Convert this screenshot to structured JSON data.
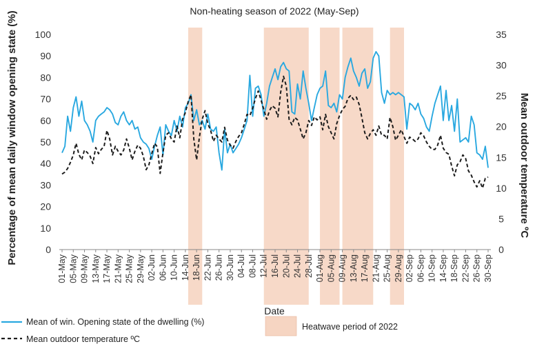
{
  "chart_data": {
    "type": "line",
    "title": "Non-heating season of 2022 (May-Sep)",
    "xlabel": "Date",
    "ylabel_left": "Percentage of mean daily window opening state (%)",
    "ylabel_right": "Mean outdoor temperature ºC",
    "ylim_left": [
      0,
      100
    ],
    "ylim_right": [
      0,
      35
    ],
    "yticks_left": [
      "0",
      "10",
      "20",
      "30",
      "40",
      "50",
      "60",
      "70",
      "80",
      "90",
      "100"
    ],
    "yticks_right": [
      "0",
      "5",
      "10",
      "15",
      "20",
      "25",
      "30",
      "35"
    ],
    "x_ticks": [
      "01-May",
      "05-May",
      "09-May",
      "13-May",
      "17-May",
      "21-May",
      "25-May",
      "29-May",
      "02-Jun",
      "06-Jun",
      "10-Jun",
      "14-Jun",
      "18-Jun",
      "22-Jun",
      "26-Jun",
      "30-Jun",
      "04-Jul",
      "08-Jul",
      "12-Jul",
      "16-Jul",
      "20-Jul",
      "24-Jul",
      "28-Jul",
      "01-Aug",
      "05-Aug",
      "09-Aug",
      "13-Aug",
      "17-Aug",
      "21-Aug",
      "25-Aug",
      "29-Aug",
      "02-Sep",
      "06-Sep",
      "10-Sep",
      "14-Sep",
      "18-Sep",
      "22-Sep",
      "26-Sep",
      "30-Sep"
    ],
    "x_range_days": [
      0,
      152
    ],
    "heatwave_periods_days": [
      [
        45,
        50
      ],
      [
        72,
        88
      ],
      [
        92,
        99
      ],
      [
        100,
        111
      ],
      [
        117,
        122
      ]
    ],
    "series": [
      {
        "name": "Mean of win. Opening state of the dwelling (%)",
        "axis": "left",
        "color": "#29a8e0",
        "style": "solid",
        "points": [
          [
            0,
            45
          ],
          [
            1,
            48
          ],
          [
            2,
            62
          ],
          [
            3,
            55
          ],
          [
            4,
            66
          ],
          [
            5,
            71
          ],
          [
            6,
            62
          ],
          [
            7,
            69
          ],
          [
            8,
            60
          ],
          [
            9,
            58
          ],
          [
            10,
            55
          ],
          [
            11,
            50
          ],
          [
            12,
            60
          ],
          [
            13,
            62
          ],
          [
            14,
            63
          ],
          [
            15,
            64
          ],
          [
            16,
            66
          ],
          [
            17,
            65
          ],
          [
            18,
            63
          ],
          [
            19,
            59
          ],
          [
            20,
            58
          ],
          [
            21,
            62
          ],
          [
            22,
            64
          ],
          [
            23,
            60
          ],
          [
            24,
            58
          ],
          [
            25,
            60
          ],
          [
            26,
            56
          ],
          [
            27,
            57
          ],
          [
            28,
            52
          ],
          [
            29,
            50
          ],
          [
            30,
            49
          ],
          [
            31,
            47
          ],
          [
            32,
            42
          ],
          [
            33,
            48
          ],
          [
            34,
            53
          ],
          [
            35,
            57
          ],
          [
            36,
            44
          ],
          [
            37,
            58
          ],
          [
            38,
            55
          ],
          [
            39,
            53
          ],
          [
            40,
            60
          ],
          [
            41,
            55
          ],
          [
            42,
            62
          ],
          [
            43,
            57
          ],
          [
            44,
            66
          ],
          [
            45,
            68
          ],
          [
            46,
            72
          ],
          [
            47,
            60
          ],
          [
            48,
            65
          ],
          [
            49,
            58
          ],
          [
            50,
            60
          ],
          [
            51,
            56
          ],
          [
            52,
            63
          ],
          [
            53,
            56
          ],
          [
            54,
            55
          ],
          [
            55,
            57
          ],
          [
            56,
            45
          ],
          [
            57,
            37
          ],
          [
            58,
            56
          ],
          [
            59,
            45
          ],
          [
            60,
            49
          ],
          [
            61,
            45
          ],
          [
            62,
            47
          ],
          [
            63,
            49
          ],
          [
            64,
            52
          ],
          [
            65,
            56
          ],
          [
            66,
            60
          ],
          [
            67,
            81
          ],
          [
            68,
            62
          ],
          [
            69,
            75
          ],
          [
            70,
            76
          ],
          [
            71,
            72
          ],
          [
            72,
            62
          ],
          [
            73,
            68
          ],
          [
            74,
            76
          ],
          [
            75,
            80
          ],
          [
            76,
            84
          ],
          [
            77,
            79
          ],
          [
            78,
            85
          ],
          [
            79,
            87
          ],
          [
            80,
            84
          ],
          [
            81,
            83
          ],
          [
            82,
            64
          ],
          [
            83,
            63
          ],
          [
            84,
            77
          ],
          [
            85,
            70
          ],
          [
            86,
            83
          ],
          [
            87,
            75
          ],
          [
            88,
            68
          ],
          [
            89,
            60
          ],
          [
            90,
            66
          ],
          [
            91,
            72
          ],
          [
            92,
            75
          ],
          [
            93,
            76
          ],
          [
            94,
            83
          ],
          [
            95,
            67
          ],
          [
            96,
            66
          ],
          [
            97,
            68
          ],
          [
            98,
            64
          ],
          [
            99,
            72
          ],
          [
            100,
            70
          ],
          [
            101,
            80
          ],
          [
            102,
            85
          ],
          [
            103,
            89
          ],
          [
            104,
            83
          ],
          [
            105,
            80
          ],
          [
            106,
            76
          ],
          [
            107,
            82
          ],
          [
            108,
            84
          ],
          [
            109,
            75
          ],
          [
            110,
            78
          ],
          [
            111,
            89
          ],
          [
            112,
            92
          ],
          [
            113,
            90
          ],
          [
            114,
            73
          ],
          [
            115,
            68
          ],
          [
            116,
            74
          ],
          [
            117,
            72
          ],
          [
            118,
            73
          ],
          [
            119,
            72
          ],
          [
            120,
            73
          ],
          [
            121,
            72
          ],
          [
            122,
            71
          ],
          [
            123,
            56
          ],
          [
            124,
            68
          ],
          [
            125,
            67
          ],
          [
            126,
            65
          ],
          [
            127,
            68
          ],
          [
            128,
            63
          ],
          [
            129,
            61
          ],
          [
            130,
            57
          ],
          [
            131,
            55
          ],
          [
            132,
            62
          ],
          [
            133,
            68
          ],
          [
            134,
            72
          ],
          [
            135,
            76
          ],
          [
            136,
            60
          ],
          [
            137,
            74
          ],
          [
            138,
            60
          ],
          [
            139,
            67
          ],
          [
            140,
            55
          ],
          [
            141,
            70
          ],
          [
            142,
            50
          ],
          [
            143,
            51
          ],
          [
            144,
            52
          ],
          [
            145,
            50
          ],
          [
            146,
            62
          ],
          [
            147,
            58
          ],
          [
            148,
            45
          ],
          [
            149,
            44
          ],
          [
            150,
            42
          ],
          [
            151,
            48
          ],
          [
            152,
            38
          ]
        ]
      },
      {
        "name": "Mean outdoor temperature ºC",
        "axis": "right",
        "color": "#1c1c1c",
        "style": "dashed",
        "points": [
          [
            0,
            12.3
          ],
          [
            1,
            12.6
          ],
          [
            2,
            13.2
          ],
          [
            3,
            14.2
          ],
          [
            4,
            15.4
          ],
          [
            5,
            17.3
          ],
          [
            6,
            15.5
          ],
          [
            7,
            14.6
          ],
          [
            8,
            16.2
          ],
          [
            9,
            15.8
          ],
          [
            10,
            15.2
          ],
          [
            11,
            14.0
          ],
          [
            12,
            16.6
          ],
          [
            13,
            15.6
          ],
          [
            14,
            16.3
          ],
          [
            15,
            16.8
          ],
          [
            16,
            19.4
          ],
          [
            17,
            18.0
          ],
          [
            18,
            15.4
          ],
          [
            19,
            16.8
          ],
          [
            20,
            16.0
          ],
          [
            21,
            15.4
          ],
          [
            22,
            16.2
          ],
          [
            23,
            18.0
          ],
          [
            24,
            16.5
          ],
          [
            25,
            14.6
          ],
          [
            26,
            16.0
          ],
          [
            27,
            17.0
          ],
          [
            28,
            16.5
          ],
          [
            29,
            15.2
          ],
          [
            30,
            13.0
          ],
          [
            31,
            13.8
          ],
          [
            32,
            15.6
          ],
          [
            33,
            17.3
          ],
          [
            34,
            16.7
          ],
          [
            35,
            12.4
          ],
          [
            36,
            15.8
          ],
          [
            37,
            18.6
          ],
          [
            38,
            19.0
          ],
          [
            39,
            18.0
          ],
          [
            40,
            17.5
          ],
          [
            41,
            20.1
          ],
          [
            42,
            18.2
          ],
          [
            43,
            21.2
          ],
          [
            44,
            22.3
          ],
          [
            45,
            24.1
          ],
          [
            46,
            25.2
          ],
          [
            47,
            18.0
          ],
          [
            48,
            14.6
          ],
          [
            49,
            18.3
          ],
          [
            50,
            21.2
          ],
          [
            51,
            22.6
          ],
          [
            52,
            20.5
          ],
          [
            53,
            19.4
          ],
          [
            54,
            17.6
          ],
          [
            55,
            18.6
          ],
          [
            56,
            18.0
          ],
          [
            57,
            17.5
          ],
          [
            58,
            19.9
          ],
          [
            59,
            17.8
          ],
          [
            60,
            17.0
          ],
          [
            61,
            16.5
          ],
          [
            62,
            17.6
          ],
          [
            63,
            18.4
          ],
          [
            64,
            19.0
          ],
          [
            65,
            20.4
          ],
          [
            66,
            22.0
          ],
          [
            67,
            21.8
          ],
          [
            68,
            23.0
          ],
          [
            69,
            24.6
          ],
          [
            70,
            25.8
          ],
          [
            71,
            24.3
          ],
          [
            72,
            22.8
          ],
          [
            73,
            21.2
          ],
          [
            74,
            22.6
          ],
          [
            75,
            23.4
          ],
          [
            76,
            23.0
          ],
          [
            77,
            21.6
          ],
          [
            78,
            25.6
          ],
          [
            79,
            28.2
          ],
          [
            80,
            26.6
          ],
          [
            81,
            21.2
          ],
          [
            82,
            20.3
          ],
          [
            83,
            21.5
          ],
          [
            84,
            21.1
          ],
          [
            85,
            19.6
          ],
          [
            86,
            18.0
          ],
          [
            87,
            19.0
          ],
          [
            88,
            21.0
          ],
          [
            89,
            20.2
          ],
          [
            90,
            21.6
          ],
          [
            91,
            21.1
          ],
          [
            92,
            21.6
          ],
          [
            93,
            19.5
          ],
          [
            94,
            22.0
          ],
          [
            95,
            20.0
          ],
          [
            96,
            19.0
          ],
          [
            97,
            18.0
          ],
          [
            98,
            20.5
          ],
          [
            99,
            21.8
          ],
          [
            100,
            22.8
          ],
          [
            101,
            23.3
          ],
          [
            102,
            24.6
          ],
          [
            103,
            25.1
          ],
          [
            104,
            24.4
          ],
          [
            105,
            24.8
          ],
          [
            106,
            23.6
          ],
          [
            107,
            21.4
          ],
          [
            108,
            19.0
          ],
          [
            109,
            18.0
          ],
          [
            110,
            18.9
          ],
          [
            111,
            19.5
          ],
          [
            112,
            18.6
          ],
          [
            113,
            20.1
          ],
          [
            114,
            18.6
          ],
          [
            115,
            18.6
          ],
          [
            116,
            18.0
          ],
          [
            117,
            21.5
          ],
          [
            118,
            20.0
          ],
          [
            119,
            17.8
          ],
          [
            120,
            18.6
          ],
          [
            121,
            19.5
          ],
          [
            122,
            18.4
          ],
          [
            123,
            17.3
          ],
          [
            124,
            18.3
          ],
          [
            125,
            18.0
          ],
          [
            126,
            17.6
          ],
          [
            127,
            18.0
          ],
          [
            128,
            19.0
          ],
          [
            129,
            18.5
          ],
          [
            130,
            17.5
          ],
          [
            131,
            16.8
          ],
          [
            132,
            16.3
          ],
          [
            133,
            16.3
          ],
          [
            134,
            17.0
          ],
          [
            135,
            18.6
          ],
          [
            136,
            16.5
          ],
          [
            137,
            15.8
          ],
          [
            138,
            15.5
          ],
          [
            139,
            13.6
          ],
          [
            140,
            12.0
          ],
          [
            141,
            13.8
          ],
          [
            142,
            14.3
          ],
          [
            143,
            15.4
          ],
          [
            144,
            14.8
          ],
          [
            145,
            12.8
          ],
          [
            146,
            12.1
          ],
          [
            147,
            11.0
          ],
          [
            148,
            10.2
          ],
          [
            149,
            11.2
          ],
          [
            150,
            10.0
          ],
          [
            151,
            11.6
          ],
          [
            152,
            11.8
          ]
        ]
      }
    ],
    "legend": {
      "window_label": "Mean of win. Opening state of the dwelling (%)",
      "temp_label": "Mean outdoor temperature ºC",
      "heatwave_label": "Heatwave period of 2022"
    },
    "colors": {
      "window_line": "#29a8e0",
      "temp_line": "#1c1c1c",
      "heatwave_fill": "#f6d5c2"
    }
  }
}
